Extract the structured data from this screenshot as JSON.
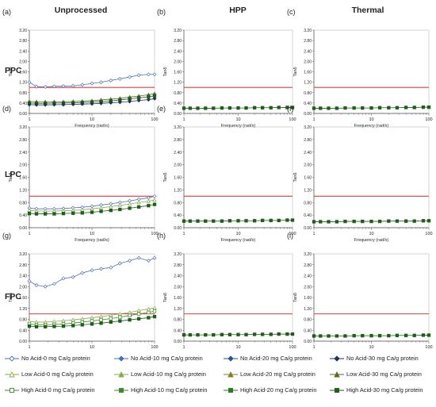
{
  "column_headers": [
    "Unprocessed",
    "HPP",
    "Thermal"
  ],
  "row_headers": [
    "PPC",
    "LPC",
    "FPC"
  ],
  "panel_labels": [
    "(a)",
    "(b)",
    "(c)",
    "(d)",
    "(e)",
    "(f)",
    "(g)",
    "(h)",
    "(i)"
  ],
  "axis": {
    "ylabel": "Tanδ",
    "xlabel": "Frequency (rad/s)",
    "y_ticks": [
      "0.00",
      "0.40",
      "0.80",
      "1.20",
      "1.60",
      "2.00",
      "2.40",
      "2.80",
      "3.20"
    ],
    "x_ticks": [
      "1",
      "10",
      "100"
    ]
  },
  "colors": {
    "no_acid": "#4a72b8",
    "low_acid": "#88ab4a",
    "high_acid": "#3a8a2a",
    "reference_line": "#e8393a",
    "dark_navy": "#1f2f5e"
  },
  "legend": [
    {
      "label": "No Acid-0 mg Ca/g protein",
      "color": "#4a72b8",
      "marker": "diamond",
      "filled": false
    },
    {
      "label": "No Acid-10 mg Ca/g protein",
      "color": "#4a72b8",
      "marker": "diamond",
      "filled": true
    },
    {
      "label": "No Acid-20 mg Ca/g protein",
      "color": "#2f4f99",
      "marker": "diamond",
      "filled": true
    },
    {
      "label": "No Acid-30 mg Ca/g protein",
      "color": "#1f2f5e",
      "marker": "diamond",
      "filled": true
    },
    {
      "label": "Low Acid-0 mg Ca/g protein",
      "color": "#88ab4a",
      "marker": "triangle",
      "filled": false
    },
    {
      "label": "Low Acid-10 mg Ca/g protein",
      "color": "#88ab4a",
      "marker": "triangle",
      "filled": true
    },
    {
      "label": "Low Acid-20 mg Ca/g protein",
      "color": "#8a7a2a",
      "marker": "triangle",
      "filled": true
    },
    {
      "label": "Low Acid-30 mg Ca/g protein",
      "color": "#5a6a20",
      "marker": "triangle",
      "filled": true
    },
    {
      "label": "High Acid-0 mg Ca/g protein",
      "color": "#3a8a2a",
      "marker": "square",
      "filled": false
    },
    {
      "label": "High Acid-10 mg Ca/g protein",
      "color": "#3a8a2a",
      "marker": "square",
      "filled": true
    },
    {
      "label": "High Acid-20 mg Ca/g protein",
      "color": "#2a7a20",
      "marker": "square",
      "filled": true
    },
    {
      "label": "High Acid-30 mg Ca/g protein",
      "color": "#1e5e18",
      "marker": "square",
      "filled": true
    }
  ],
  "chart_data": [
    {
      "panel": "(a)",
      "type": "line",
      "xscale": "log",
      "xlim": [
        1,
        100
      ],
      "ylim": [
        0,
        3.2
      ],
      "reference_y": 1.0,
      "series": [
        {
          "name": "No Acid-0 mg Ca/g protein",
          "x": [
            1,
            1.3,
            1.8,
            2.5,
            3.5,
            5,
            7,
            10,
            14,
            20,
            28,
            40,
            56,
            80,
            100
          ],
          "y": [
            1.2,
            1.03,
            1.02,
            1.04,
            1.05,
            1.06,
            1.1,
            1.15,
            1.2,
            1.27,
            1.33,
            1.4,
            1.47,
            1.5,
            1.5
          ]
        },
        {
          "name": "Low Acid-30 mg Ca/g protein",
          "x": [
            1,
            1.3,
            1.8,
            2.5,
            3.5,
            5,
            7,
            10,
            14,
            20,
            28,
            40,
            56,
            80,
            100
          ],
          "y": [
            0.46,
            0.45,
            0.45,
            0.45,
            0.45,
            0.46,
            0.47,
            0.49,
            0.52,
            0.55,
            0.58,
            0.63,
            0.67,
            0.72,
            0.76
          ]
        },
        {
          "name": "High Acid-30 mg Ca/g protein",
          "x": [
            1,
            1.3,
            1.8,
            2.5,
            3.5,
            5,
            7,
            10,
            14,
            20,
            28,
            40,
            56,
            80,
            100
          ],
          "y": [
            0.4,
            0.39,
            0.39,
            0.4,
            0.4,
            0.41,
            0.42,
            0.43,
            0.45,
            0.48,
            0.52,
            0.56,
            0.6,
            0.64,
            0.68
          ]
        },
        {
          "name": "No Acid-30 mg Ca/g protein",
          "x": [
            1,
            1.3,
            1.8,
            2.5,
            3.5,
            5,
            7,
            10,
            14,
            20,
            28,
            40,
            56,
            80,
            100
          ],
          "y": [
            0.34,
            0.33,
            0.33,
            0.34,
            0.34,
            0.35,
            0.36,
            0.37,
            0.39,
            0.41,
            0.43,
            0.46,
            0.5,
            0.53,
            0.57
          ]
        }
      ]
    },
    {
      "panel": "(b)",
      "type": "line",
      "xscale": "log",
      "xlim": [
        1,
        100
      ],
      "ylim": [
        0,
        3.2
      ],
      "reference_y": 1.0,
      "series": [
        {
          "name": "High Acid-30 mg Ca/g protein",
          "x": [
            1,
            1.3,
            1.8,
            2.5,
            3.5,
            5,
            7,
            10,
            14,
            20,
            28,
            40,
            56,
            80,
            100
          ],
          "y": [
            0.2,
            0.2,
            0.2,
            0.2,
            0.2,
            0.21,
            0.21,
            0.21,
            0.21,
            0.22,
            0.22,
            0.22,
            0.23,
            0.23,
            0.23
          ]
        }
      ]
    },
    {
      "panel": "(c)",
      "type": "line",
      "xscale": "log",
      "xlim": [
        1,
        100
      ],
      "ylim": [
        0,
        3.2
      ],
      "reference_y": 1.0,
      "series": [
        {
          "name": "High Acid-30 mg Ca/g protein",
          "x": [
            1,
            1.3,
            1.8,
            2.5,
            3.5,
            5,
            7,
            10,
            14,
            20,
            28,
            40,
            56,
            80,
            100
          ],
          "y": [
            0.2,
            0.2,
            0.2,
            0.2,
            0.21,
            0.21,
            0.21,
            0.21,
            0.22,
            0.22,
            0.22,
            0.23,
            0.23,
            0.24,
            0.24
          ]
        }
      ]
    },
    {
      "panel": "(d)",
      "type": "line",
      "xscale": "log",
      "xlim": [
        1,
        100
      ],
      "ylim": [
        0,
        3.2
      ],
      "reference_y": 1.0,
      "series": [
        {
          "name": "No Acid-0 mg Ca/g protein",
          "x": [
            1,
            1.3,
            1.8,
            2.5,
            3.5,
            5,
            7,
            10,
            14,
            20,
            28,
            40,
            56,
            80,
            100
          ],
          "y": [
            0.62,
            0.6,
            0.6,
            0.6,
            0.61,
            0.63,
            0.65,
            0.68,
            0.72,
            0.76,
            0.8,
            0.85,
            0.9,
            0.95,
            1.0
          ]
        },
        {
          "name": "Low Acid-0 mg Ca/g protein",
          "x": [
            1,
            1.3,
            1.8,
            2.5,
            3.5,
            5,
            7,
            10,
            14,
            20,
            28,
            40,
            56,
            80,
            100
          ],
          "y": [
            0.55,
            0.53,
            0.53,
            0.53,
            0.54,
            0.55,
            0.57,
            0.6,
            0.63,
            0.67,
            0.71,
            0.75,
            0.8,
            0.84,
            0.88
          ]
        },
        {
          "name": "High Acid-30 mg Ca/g protein",
          "x": [
            1,
            1.3,
            1.8,
            2.5,
            3.5,
            5,
            7,
            10,
            14,
            20,
            28,
            40,
            56,
            80,
            100
          ],
          "y": [
            0.45,
            0.44,
            0.44,
            0.44,
            0.45,
            0.46,
            0.47,
            0.49,
            0.52,
            0.55,
            0.58,
            0.62,
            0.66,
            0.7,
            0.74
          ]
        }
      ]
    },
    {
      "panel": "(e)",
      "type": "line",
      "xscale": "log",
      "xlim": [
        1,
        100
      ],
      "ylim": [
        0,
        3.2
      ],
      "reference_y": 1.0,
      "series": [
        {
          "name": "High Acid-30 mg Ca/g protein",
          "x": [
            1,
            1.3,
            1.8,
            2.5,
            3.5,
            5,
            7,
            10,
            14,
            20,
            28,
            40,
            56,
            80,
            100
          ],
          "y": [
            0.21,
            0.21,
            0.21,
            0.21,
            0.21,
            0.21,
            0.22,
            0.22,
            0.22,
            0.22,
            0.23,
            0.23,
            0.23,
            0.24,
            0.24
          ]
        }
      ]
    },
    {
      "panel": "(f)",
      "type": "line",
      "xscale": "log",
      "xlim": [
        1,
        100
      ],
      "ylim": [
        0,
        3.2
      ],
      "reference_y": 1.0,
      "series": [
        {
          "name": "High Acid-30 mg Ca/g protein",
          "x": [
            1,
            1.3,
            1.8,
            2.5,
            3.5,
            5,
            7,
            10,
            14,
            20,
            28,
            40,
            56,
            80,
            100
          ],
          "y": [
            0.19,
            0.19,
            0.19,
            0.19,
            0.2,
            0.2,
            0.2,
            0.2,
            0.2,
            0.21,
            0.21,
            0.21,
            0.21,
            0.22,
            0.22
          ]
        }
      ]
    },
    {
      "panel": "(g)",
      "type": "line",
      "xscale": "log",
      "xlim": [
        1,
        100
      ],
      "ylim": [
        0,
        3.2
      ],
      "reference_y": 1.0,
      "series": [
        {
          "name": "No Acid-0 mg Ca/g protein",
          "x": [
            1,
            1.3,
            1.8,
            2.5,
            3.5,
            5,
            7,
            10,
            14,
            20,
            28,
            40,
            56,
            80,
            100
          ],
          "y": [
            2.2,
            2.05,
            2.0,
            2.1,
            2.3,
            2.35,
            2.5,
            2.6,
            2.65,
            2.7,
            2.85,
            2.95,
            3.05,
            2.95,
            3.05
          ]
        },
        {
          "name": "Low Acid-0 mg Ca/g protein",
          "x": [
            1,
            1.3,
            1.8,
            2.5,
            3.5,
            5,
            7,
            10,
            14,
            20,
            28,
            40,
            56,
            80,
            100
          ],
          "y": [
            0.72,
            0.7,
            0.7,
            0.72,
            0.75,
            0.78,
            0.82,
            0.86,
            0.9,
            0.95,
            1.0,
            1.05,
            1.12,
            1.18,
            1.22
          ]
        },
        {
          "name": "High Acid-0 mg Ca/g protein",
          "x": [
            1,
            1.3,
            1.8,
            2.5,
            3.5,
            5,
            7,
            10,
            14,
            20,
            28,
            40,
            56,
            80,
            100
          ],
          "y": [
            0.62,
            0.6,
            0.6,
            0.61,
            0.63,
            0.66,
            0.7,
            0.74,
            0.78,
            0.83,
            0.88,
            0.94,
            1.0,
            1.05,
            1.1
          ]
        },
        {
          "name": "High Acid-30 mg Ca/g protein",
          "x": [
            1,
            1.3,
            1.8,
            2.5,
            3.5,
            5,
            7,
            10,
            14,
            20,
            28,
            40,
            56,
            80,
            100
          ],
          "y": [
            0.55,
            0.53,
            0.53,
            0.54,
            0.55,
            0.57,
            0.6,
            0.63,
            0.66,
            0.7,
            0.74,
            0.78,
            0.82,
            0.86,
            0.9
          ]
        }
      ]
    },
    {
      "panel": "(h)",
      "type": "line",
      "xscale": "log",
      "xlim": [
        1,
        100
      ],
      "ylim": [
        0,
        3.2
      ],
      "reference_y": 1.0,
      "series": [
        {
          "name": "High Acid-30 mg Ca/g protein",
          "x": [
            1,
            1.3,
            1.8,
            2.5,
            3.5,
            5,
            7,
            10,
            14,
            20,
            28,
            40,
            56,
            80,
            100
          ],
          "y": [
            0.23,
            0.23,
            0.23,
            0.23,
            0.23,
            0.24,
            0.24,
            0.24,
            0.24,
            0.25,
            0.25,
            0.25,
            0.26,
            0.26,
            0.26
          ]
        }
      ]
    },
    {
      "panel": "(i)",
      "type": "line",
      "xscale": "log",
      "xlim": [
        1,
        100
      ],
      "ylim": [
        0,
        3.2
      ],
      "reference_y": 1.0,
      "series": [
        {
          "name": "High Acid-30 mg Ca/g protein",
          "x": [
            1,
            1.3,
            1.8,
            2.5,
            3.5,
            5,
            7,
            10,
            14,
            20,
            28,
            40,
            56,
            80,
            100
          ],
          "y": [
            0.19,
            0.19,
            0.19,
            0.19,
            0.19,
            0.2,
            0.2,
            0.2,
            0.2,
            0.2,
            0.21,
            0.21,
            0.21,
            0.22,
            0.22
          ]
        }
      ]
    }
  ]
}
